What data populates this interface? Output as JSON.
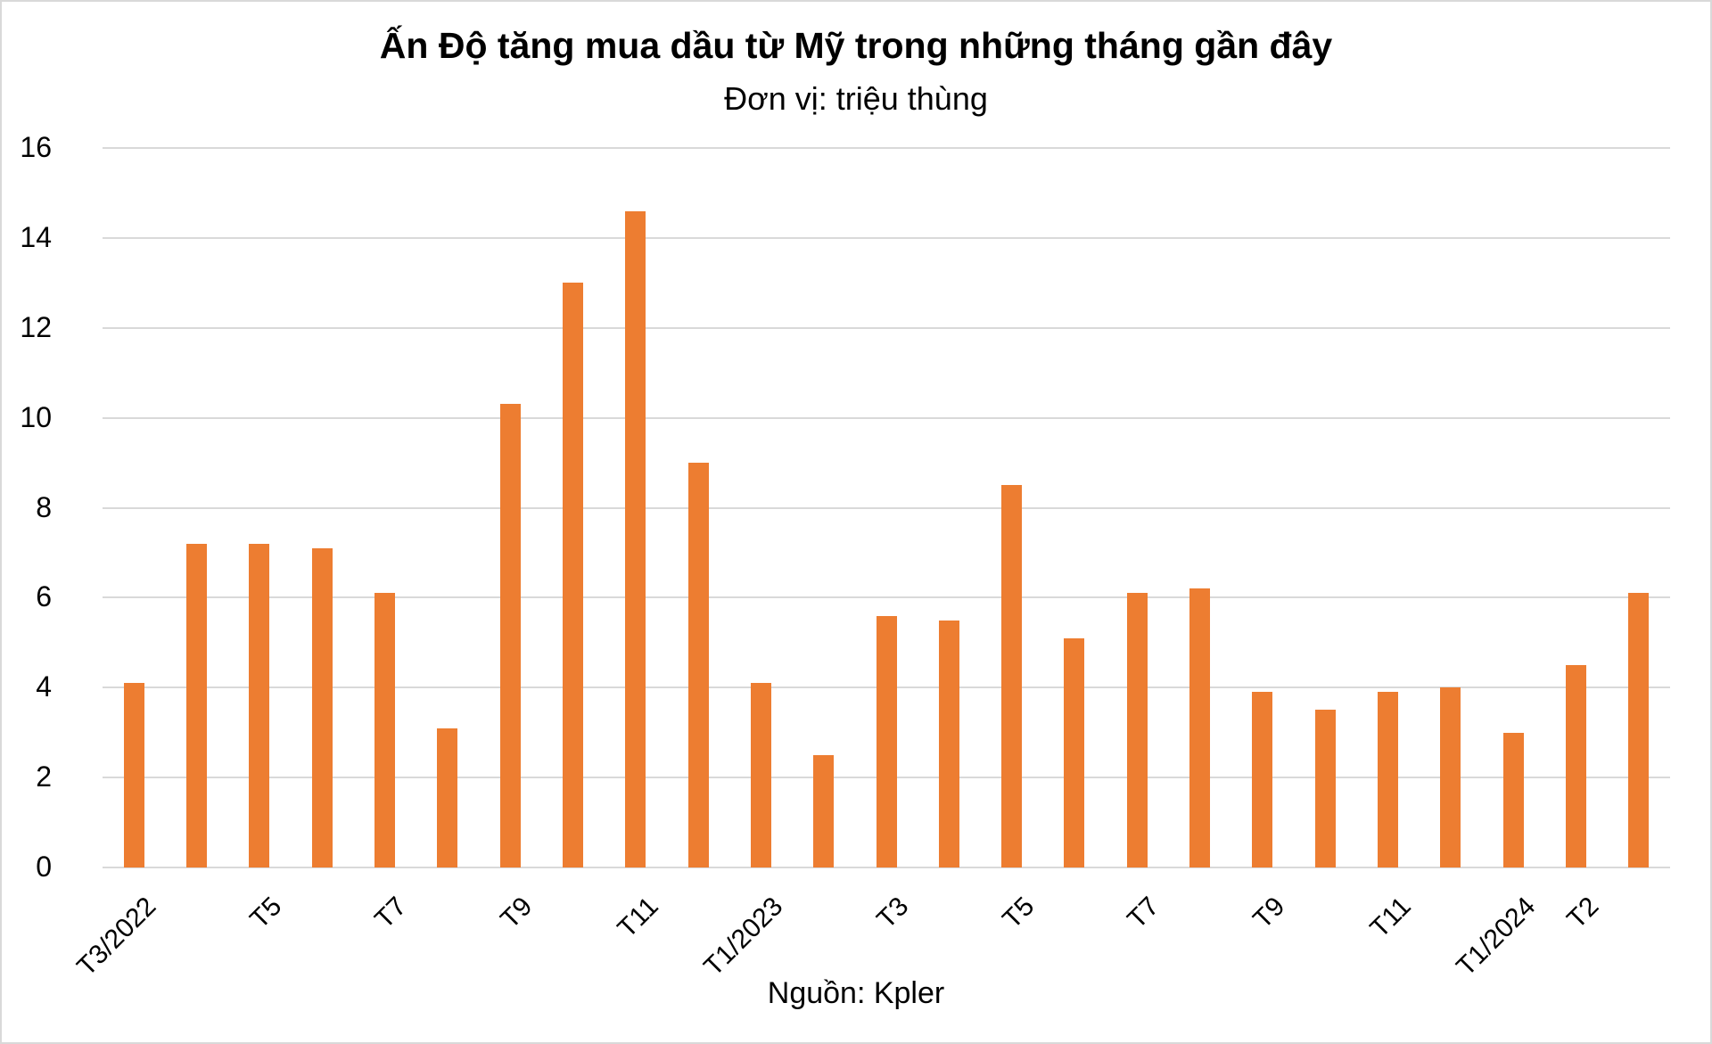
{
  "title": "Ấn Độ tăng mua dầu từ Mỹ trong những tháng gần đây",
  "subtitle": "Đơn vị: triệu thùng",
  "source": "Nguồn: Kpler",
  "colors": {
    "bar": "#ed7d31",
    "grid": "#d9d9d9"
  },
  "chart_data": {
    "type": "bar",
    "title": "Ấn Độ tăng mua dầu từ Mỹ trong những tháng gần đây",
    "subtitle": "Đơn vị: triệu thùng",
    "xlabel": "",
    "ylabel": "triệu thùng",
    "ylim": [
      0,
      16
    ],
    "yticks": [
      0,
      2,
      4,
      6,
      8,
      10,
      12,
      14,
      16
    ],
    "grid": true,
    "legend": "none",
    "categories": [
      "T3/2022",
      "T4",
      "T5",
      "T6",
      "T7",
      "T8",
      "T9",
      "T10",
      "T11",
      "T12",
      "T1/2023",
      "T2",
      "T3",
      "T4",
      "T5",
      "T6",
      "T7",
      "T8",
      "T9",
      "T10",
      "T11",
      "T12",
      "T1/2024",
      "T2",
      "T3"
    ],
    "visible_tick_labels": [
      "T3/2022",
      "T5",
      "T7",
      "T9",
      "T11",
      "T1/2023",
      "T3",
      "T5",
      "T7",
      "T9",
      "T11",
      "T1/2024",
      "T2"
    ],
    "values": [
      4.1,
      7.2,
      7.2,
      7.1,
      6.1,
      3.1,
      10.3,
      13.0,
      14.6,
      9.0,
      4.1,
      2.5,
      5.6,
      5.5,
      8.5,
      5.1,
      6.1,
      6.2,
      3.9,
      3.5,
      3.9,
      4.0,
      3.0,
      4.5,
      6.1
    ],
    "annotation": "Nguồn: Kpler"
  }
}
